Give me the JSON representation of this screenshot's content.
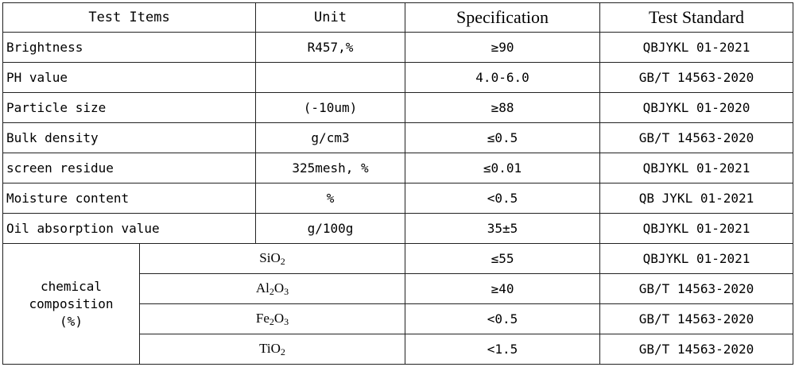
{
  "headers": {
    "item": "Test Items",
    "unit": "Unit",
    "spec": "Specification",
    "standard": "Test Standard"
  },
  "rows": [
    {
      "item": "Brightness",
      "unit": "R457,%",
      "spec": "≥90",
      "standard": "QBJYKL 01-2021"
    },
    {
      "item": "PH value",
      "unit": "",
      "spec": "4.0-6.0",
      "standard": "GB/T 14563-2020"
    },
    {
      "item": "Particle size",
      "unit": "(-10um)",
      "spec": "≥88",
      "standard": "QBJYKL 01-2020"
    },
    {
      "item": "Bulk density",
      "unit": "g/cm3",
      "spec": "≤0.5",
      "standard": "GB/T 14563-2020"
    },
    {
      "item": "screen residue",
      "unit": "325mesh, %",
      "spec": "≤0.01",
      "standard": "QBJYKL 01-2021"
    },
    {
      "item": "Moisture content",
      "unit": "%",
      "spec": "<0.5",
      "standard": "QB JYKL 01-2021"
    },
    {
      "item": "Oil absorption value",
      "unit": "g/100g",
      "spec": "35±5",
      "standard": "QBJYKL 01-2021"
    }
  ],
  "chemical": {
    "label_line1": "chemical",
    "label_line2": "composition",
    "label_line3": "(%)",
    "rows": [
      {
        "f1": "SiO",
        "s1": "2",
        "f2": "",
        "s2": "",
        "spec": "≤55",
        "standard": "QBJYKL 01-2021"
      },
      {
        "f1": "Al",
        "s1": "2",
        "f2": "O",
        "s2": "3",
        "spec": "≥40",
        "standard": "GB/T 14563-2020"
      },
      {
        "f1": "Fe",
        "s1": "2",
        "f2": "O",
        "s2": "3",
        "spec": "<0.5",
        "standard": "GB/T 14563-2020"
      },
      {
        "f1": "TiO",
        "s1": "2",
        "f2": "",
        "s2": "",
        "spec": "<1.5",
        "standard": "GB/T 14563-2020"
      }
    ]
  }
}
